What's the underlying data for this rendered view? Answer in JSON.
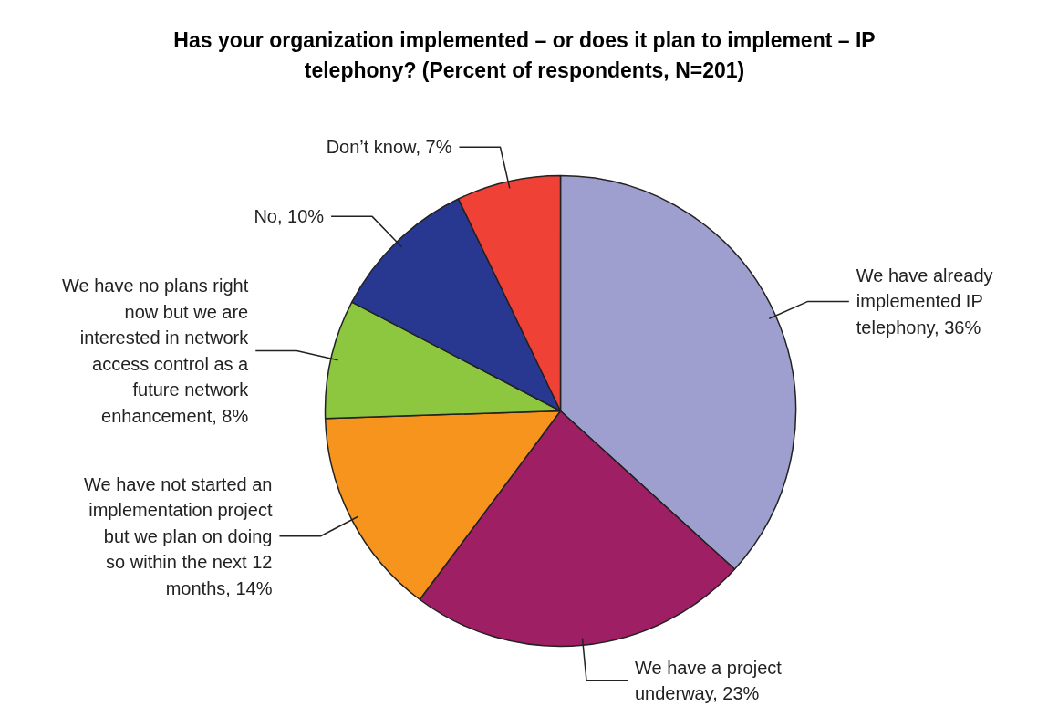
{
  "chart_data": {
    "type": "pie",
    "title": "Has your organization implemented – or does it plan to implement – IP telephony? (Percent of respondents, N=201)",
    "categories": [
      "We have already implemented IP telephony",
      "We have a project underway",
      "We have not started an implementation project but we plan on doing so within the next 12 months",
      "We have no plans right now but we are interested in network access control as a future network enhancement",
      "No",
      "Don’t know"
    ],
    "values": [
      36,
      23,
      14,
      8,
      10,
      7
    ],
    "value_labels": [
      "36%",
      "23%",
      "14%",
      "8%",
      "10%",
      "7%"
    ],
    "colors": [
      "#9e9fce",
      "#9e1f63",
      "#f7941d",
      "#8dc63f",
      "#283891",
      "#ef4136"
    ]
  }
}
